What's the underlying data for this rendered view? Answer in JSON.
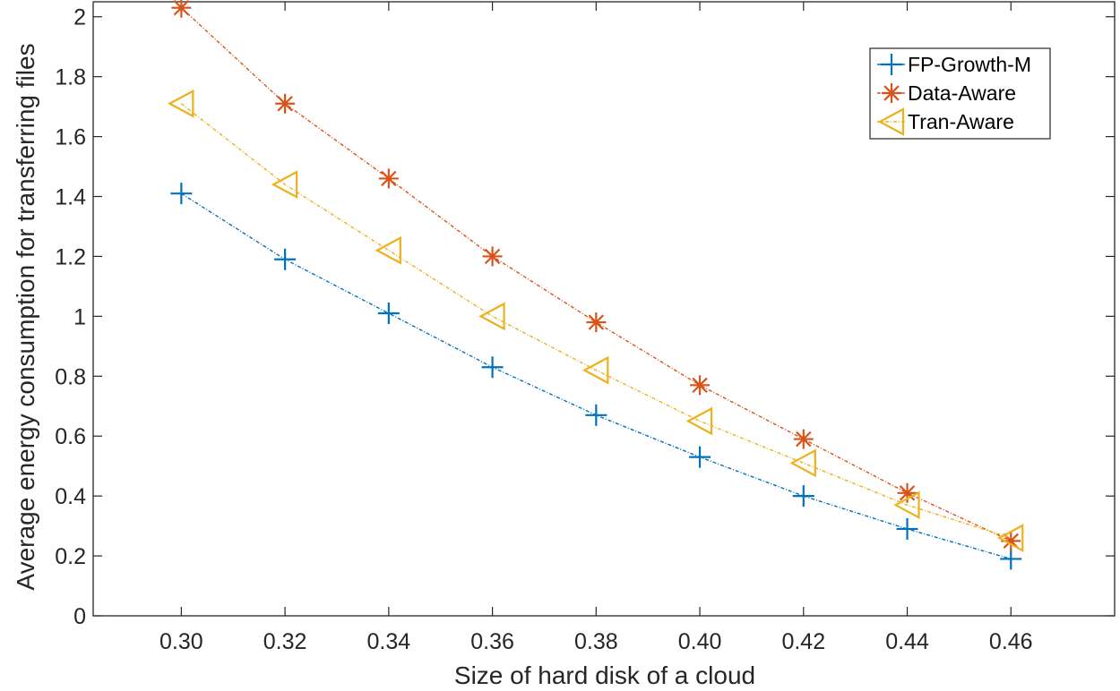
{
  "chart_data": {
    "type": "line",
    "xlabel": "Size of hard disk of a cloud",
    "ylabel": "Average energy consumption for transferring files",
    "x": [
      0.3,
      0.32,
      0.34,
      0.36,
      0.38,
      0.4,
      0.42,
      0.44,
      0.46
    ],
    "x_tick_labels": [
      "0.30",
      "0.32",
      "0.34",
      "0.36",
      "0.38",
      "0.40",
      "0.42",
      "0.44",
      "0.46"
    ],
    "xlim": [
      0.283,
      0.48
    ],
    "ylim": [
      0,
      2.05
    ],
    "y_ticks": [
      0,
      0.2,
      0.4,
      0.6,
      0.8,
      1,
      1.2,
      1.4,
      1.6,
      1.8,
      2
    ],
    "y_tick_labels": [
      "0",
      "0.2",
      "0.4",
      "0.6",
      "0.8",
      "1",
      "1.2",
      "1.4",
      "1.6",
      "1.8",
      "2"
    ],
    "grid": false,
    "legend_position": "top-right",
    "series": [
      {
        "name": "FP-Growth-M",
        "color": "#0072BD",
        "marker": "plus",
        "values": [
          1.41,
          1.19,
          1.01,
          0.83,
          0.67,
          0.53,
          0.4,
          0.29,
          0.19
        ]
      },
      {
        "name": "Data-Aware",
        "color": "#D95319",
        "marker": "asterisk",
        "values": [
          2.03,
          1.71,
          1.46,
          1.2,
          0.98,
          0.77,
          0.59,
          0.41,
          0.25
        ]
      },
      {
        "name": "Tran-Aware",
        "color": "#EDB120",
        "marker": "triangle-left",
        "values": [
          1.71,
          1.44,
          1.22,
          1.0,
          0.82,
          0.65,
          0.51,
          0.37,
          0.26
        ]
      }
    ]
  }
}
